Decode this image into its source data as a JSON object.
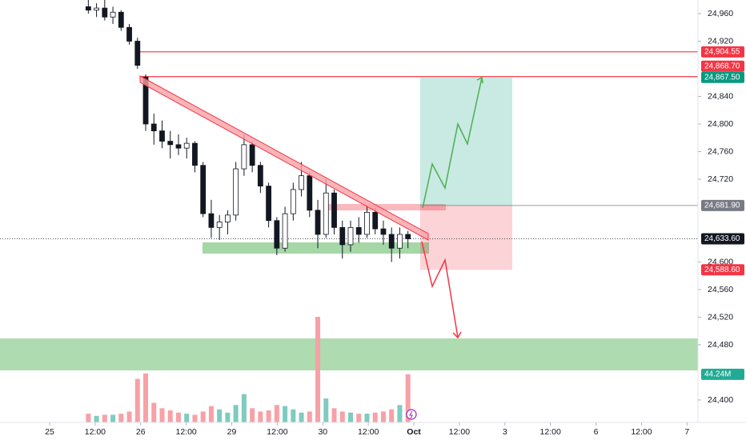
{
  "chart_data": {
    "type": "candlestick",
    "x": [
      0.85,
      1.03,
      1.21,
      1.39,
      1.57,
      1.75,
      1.93,
      2.11,
      2.29,
      2.47,
      2.65,
      2.83,
      3.01,
      3.19,
      3.37,
      3.55,
      3.73,
      3.91,
      4.09,
      4.27,
      4.45,
      4.63,
      4.81,
      4.99,
      5.17,
      5.35,
      5.53,
      5.71,
      5.89,
      6.07,
      6.25,
      6.43,
      6.61,
      6.79,
      6.97,
      7.15,
      7.33,
      7.51,
      7.69,
      7.87
    ],
    "open": [
      24970,
      24965,
      24968,
      24955,
      24962,
      24940,
      24920,
      24868,
      24800,
      24790,
      24775,
      24770,
      24765,
      24772,
      24740,
      24670,
      24650,
      24658,
      24668,
      24735,
      24770,
      24740,
      24710,
      24660,
      24620,
      24670,
      24705,
      24725,
      24675,
      24640,
      24700,
      24650,
      24625,
      24650,
      24640,
      24672,
      24648,
      24640,
      24620,
      24640
    ],
    "high": [
      24985,
      24975,
      24980,
      24970,
      24965,
      24945,
      24925,
      24872,
      24815,
      24805,
      24790,
      24785,
      24780,
      24775,
      24745,
      24690,
      24668,
      24675,
      24745,
      24785,
      24775,
      24745,
      24715,
      24665,
      24680,
      24715,
      24745,
      24730,
      24690,
      24720,
      24705,
      24660,
      24660,
      24665,
      24680,
      24678,
      24660,
      24650,
      24650,
      24645
    ],
    "low": [
      24960,
      24955,
      24950,
      24945,
      24935,
      24915,
      24880,
      24790,
      24770,
      24765,
      24750,
      24755,
      24750,
      24730,
      24665,
      24635,
      24632,
      24640,
      24660,
      24725,
      24730,
      24700,
      24650,
      24610,
      24615,
      24660,
      24695,
      24665,
      24620,
      24635,
      24640,
      24605,
      24615,
      24628,
      24635,
      24640,
      24625,
      24600,
      24605,
      24620
    ],
    "close": [
      24965,
      24968,
      24955,
      24962,
      24940,
      24920,
      24885,
      24800,
      24790,
      24775,
      24770,
      24765,
      24772,
      24740,
      24670,
      24650,
      24658,
      24668,
      24735,
      24770,
      24740,
      24710,
      24660,
      24620,
      24670,
      24705,
      24725,
      24675,
      24640,
      24700,
      24650,
      24625,
      24650,
      24640,
      24672,
      24648,
      24640,
      24620,
      24640,
      24633.6
    ],
    "volume": {
      "values": [
        8,
        6,
        7,
        7,
        8,
        10,
        40,
        45,
        18,
        13,
        11,
        9,
        8,
        7,
        10,
        15,
        12,
        9,
        16,
        26,
        13,
        10,
        11,
        16,
        15,
        12,
        9,
        10,
        97,
        22,
        13,
        10,
        9,
        8,
        8,
        9,
        10,
        12,
        16,
        44.24
      ],
      "value_labels": [
        null,
        null,
        null,
        null,
        null,
        null,
        null,
        null,
        null,
        null,
        null,
        null,
        null,
        null,
        null,
        null,
        null,
        null,
        null,
        null,
        null,
        null,
        null,
        null,
        null,
        null,
        null,
        null,
        null,
        null,
        null,
        null,
        null,
        null,
        null,
        null,
        null,
        null,
        null,
        "44.24M"
      ],
      "up_color": "#7fcbbf",
      "down_color": "#f7a1a6",
      "label_color": "#22ab94"
    },
    "up_color": "#ffffff",
    "down_color": "#131722",
    "xlim": [
      -1.09,
      14.24
    ],
    "xticks": [
      {
        "value": 0,
        "label": "25"
      },
      {
        "value": 1,
        "label": "12:00"
      },
      {
        "value": 2,
        "label": "26"
      },
      {
        "value": 3,
        "label": "12:00"
      },
      {
        "value": 4,
        "label": "29"
      },
      {
        "value": 5,
        "label": "12:00"
      },
      {
        "value": 6,
        "label": "30"
      },
      {
        "value": 7,
        "label": "12:00"
      },
      {
        "value": 8,
        "label": "Oct"
      },
      {
        "value": 9,
        "label": "12:00"
      },
      {
        "value": 10,
        "label": "3"
      },
      {
        "value": 11,
        "label": "12:00"
      },
      {
        "value": 12,
        "label": "6"
      },
      {
        "value": 13,
        "label": "12:00"
      },
      {
        "value": 14,
        "label": "7"
      }
    ],
    "ylim": [
      24367.5,
      24979.7
    ],
    "yticks": [
      {
        "value": 24960,
        "label": "24,960"
      },
      {
        "value": 24920,
        "label": "24,920"
      },
      {
        "value": 24840,
        "label": "24,840"
      },
      {
        "value": 24800,
        "label": "24,800"
      },
      {
        "value": 24760,
        "label": "24,760"
      },
      {
        "value": 24720,
        "label": "24,720"
      },
      {
        "value": 24600,
        "label": "24,600"
      },
      {
        "value": 24560,
        "label": "24,560"
      },
      {
        "value": 24520,
        "label": "24,520"
      },
      {
        "value": 24480,
        "label": "24,480"
      },
      {
        "value": 24400,
        "label": "24,400"
      }
    ],
    "levels": [
      {
        "value": 24904.55,
        "label": "24,904.55",
        "color": "#f23645"
      },
      {
        "value": 24868.7,
        "label": "24,868.70",
        "color": "#f23645"
      }
    ],
    "position": {
      "target": {
        "value": 24867.5,
        "label": "24,867.50",
        "color": "#089981"
      },
      "entry": {
        "value": 24681.9,
        "label": "24,681.90",
        "color": "#787b86"
      },
      "stop": {
        "value": 24588.6,
        "label": "24,588.60",
        "color": "#f23645"
      }
    },
    "last_price": {
      "value": 24633.6,
      "label": "24,633.60",
      "color": "#131722"
    }
  }
}
